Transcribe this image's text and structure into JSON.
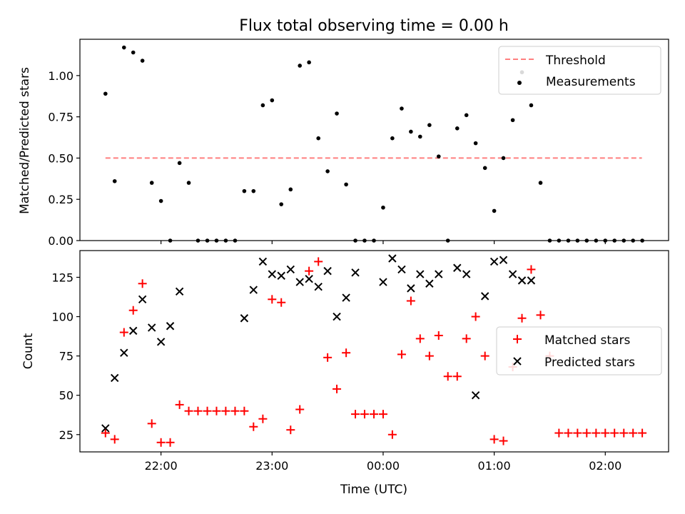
{
  "title": "Flux total observing time = 0.00 h",
  "chart_data": [
    {
      "type": "scatter",
      "ylabel": "Matched/Predicted stars",
      "ylim": [
        0,
        1.22
      ],
      "xlim": [
        21.27,
        26.57
      ],
      "yticks": [
        0.0,
        0.25,
        0.5,
        0.75,
        1.0
      ],
      "ytick_labels": [
        "0.00",
        "0.25",
        "0.50",
        "0.75",
        "1.00"
      ],
      "grid": false,
      "legend_position": "top-right",
      "threshold": {
        "name": "Threshold",
        "y": 0.5,
        "x_range": [
          21.5,
          26.33
        ],
        "color": "#ff7f7f"
      },
      "series": [
        {
          "name": "Measurements",
          "color": "#000000",
          "x": [
            21.5,
            21.583,
            21.667,
            21.75,
            21.833,
            21.917,
            22.0,
            22.083,
            22.167,
            22.25,
            22.333,
            22.417,
            22.5,
            22.583,
            22.667,
            22.75,
            22.833,
            22.917,
            23.0,
            23.083,
            23.167,
            23.25,
            23.333,
            23.417,
            23.5,
            23.583,
            23.667,
            23.75,
            23.833,
            23.917,
            24.0,
            24.083,
            24.167,
            24.25,
            24.333,
            24.417,
            24.5,
            24.583,
            24.667,
            24.75,
            24.833,
            24.917,
            25.0,
            25.083,
            25.167,
            25.25,
            25.333,
            25.417,
            25.5,
            25.583,
            25.667,
            25.75,
            25.833,
            25.917,
            26.0,
            26.083,
            26.167,
            26.25,
            26.333
          ],
          "y": [
            0.89,
            0.36,
            1.17,
            1.14,
            1.09,
            0.35,
            0.24,
            0.0,
            0.47,
            0.35,
            0.0,
            0.0,
            0.0,
            0.0,
            0.0,
            0.3,
            0.3,
            0.82,
            0.85,
            0.22,
            0.31,
            1.06,
            1.08,
            0.62,
            0.42,
            0.77,
            0.34,
            0.0,
            0.0,
            0.0,
            0.2,
            0.62,
            0.8,
            0.66,
            0.63,
            0.7,
            0.51,
            0.0,
            0.68,
            0.76,
            0.59,
            0.44,
            0.18,
            0.5,
            0.73,
            1.02,
            0.82,
            0.35,
            0.0,
            0.0,
            0.0,
            0.0,
            0.0,
            0.0,
            0.0,
            0.0,
            0.0,
            0.0,
            0.0
          ]
        }
      ]
    },
    {
      "type": "scatter",
      "ylabel": "Count",
      "xlabel": "Time (UTC)",
      "ylim": [
        14,
        142
      ],
      "xlim": [
        21.27,
        26.57
      ],
      "yticks": [
        25,
        50,
        75,
        100,
        125
      ],
      "ytick_labels": [
        "25",
        "50",
        "75",
        "100",
        "125"
      ],
      "xticks": [
        22,
        23,
        24,
        25,
        26
      ],
      "xtick_labels": [
        "22:00",
        "23:00",
        "00:00",
        "01:00",
        "02:00"
      ],
      "grid": false,
      "legend_position": "center-right",
      "series": [
        {
          "name": "Matched stars",
          "marker": "+",
          "color": "#ff0000",
          "x": [
            21.5,
            21.583,
            21.667,
            21.75,
            21.833,
            21.917,
            22.0,
            22.083,
            22.167,
            22.25,
            22.333,
            22.417,
            22.5,
            22.583,
            22.667,
            22.75,
            22.833,
            22.917,
            23.0,
            23.083,
            23.167,
            23.25,
            23.333,
            23.417,
            23.5,
            23.583,
            23.667,
            23.75,
            23.833,
            23.917,
            24.0,
            24.083,
            24.167,
            24.25,
            24.333,
            24.417,
            24.5,
            24.583,
            24.667,
            24.75,
            24.833,
            24.917,
            25.0,
            25.083,
            25.167,
            25.25,
            25.333,
            25.417,
            25.5,
            25.583,
            25.667,
            25.75,
            25.833,
            25.917,
            26.0,
            26.083,
            26.167,
            26.25,
            26.333
          ],
          "y": [
            26,
            22,
            90,
            104,
            121,
            32,
            20,
            20,
            44,
            40,
            40,
            40,
            40,
            40,
            40,
            40,
            30,
            35,
            111,
            109,
            28,
            41,
            129,
            135,
            74,
            54,
            77,
            38,
            38,
            38,
            38,
            25,
            76,
            110,
            86,
            75,
            88,
            62,
            62,
            86,
            100,
            75,
            22,
            21,
            68,
            99,
            130,
            101,
            75,
            26,
            26,
            26,
            26,
            26,
            26,
            26,
            26,
            26,
            26
          ]
        },
        {
          "name": "Predicted stars",
          "marker": "x",
          "color": "#000000",
          "x": [
            21.5,
            21.583,
            21.667,
            21.75,
            21.833,
            21.917,
            22.0,
            22.083,
            22.167,
            22.75,
            22.833,
            22.917,
            23.0,
            23.083,
            23.167,
            23.25,
            23.333,
            23.417,
            23.5,
            23.583,
            23.667,
            23.75,
            24.0,
            24.083,
            24.167,
            24.25,
            24.333,
            24.417,
            24.5,
            24.667,
            24.75,
            24.833,
            24.917,
            25.0,
            25.083,
            25.167,
            25.25,
            25.333
          ],
          "y": [
            29,
            61,
            77,
            91,
            111,
            93,
            84,
            94,
            116,
            99,
            117,
            135,
            127,
            126,
            130,
            122,
            124,
            119,
            129,
            100,
            112,
            128,
            122,
            137,
            130,
            118,
            127,
            121,
            127,
            131,
            127,
            50,
            113,
            135,
            136,
            127,
            123,
            123
          ]
        }
      ]
    }
  ]
}
